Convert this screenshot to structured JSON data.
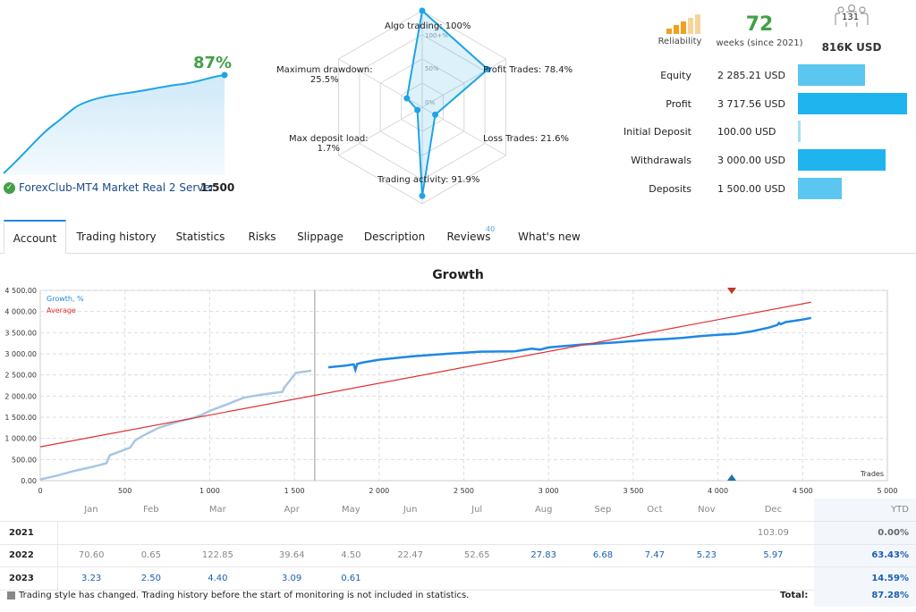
{
  "summary": {
    "growth_pct": "87%",
    "server_name": "ForexClub-MT4 Market Real 2 Server",
    "leverage": "1:500",
    "reliability_label": "Reliability",
    "weeks": "72",
    "weeks_label": "weeks (since 2021)",
    "subscribers": "131",
    "subscribers_amount": "816K USD"
  },
  "radar": {
    "labels": {
      "algo": "Algo trading: 100%",
      "profit": "Profit Trades: 78.4%",
      "loss": "Loss Trades: 21.6%",
      "activity": "Trading activity: 91.9%",
      "load_line1": "Max deposit load:",
      "load_line2": "1.7%",
      "drawdown_line1": "Maximum drawdown:",
      "drawdown_line2": "25.5%"
    },
    "scale_labels": [
      "100+%",
      "50%",
      "0%"
    ],
    "values": {
      "algo": 100,
      "profit": 78.4,
      "loss": 21.6,
      "activity": 91.9,
      "load": 1.7,
      "drawdown": 25.5
    }
  },
  "financials": [
    {
      "label": "Equity",
      "value": "2 285.21 USD",
      "amount": 2285.21,
      "color": "#5bc6f0"
    },
    {
      "label": "Profit",
      "value": "3 717.56 USD",
      "amount": 3717.56,
      "color": "#20b4ee"
    },
    {
      "label": "Initial Deposit",
      "value": "100.00 USD",
      "amount": 100,
      "color": "#a5dff6"
    },
    {
      "label": "Withdrawals",
      "value": "3 000.00 USD",
      "amount": 3000,
      "color": "#20b4ee"
    },
    {
      "label": "Deposits",
      "value": "1 500.00 USD",
      "amount": 1500,
      "color": "#5bc6f0"
    }
  ],
  "tabs": [
    {
      "label": "Account",
      "active": true
    },
    {
      "label": "Trading history"
    },
    {
      "label": "Statistics"
    },
    {
      "label": "Risks"
    },
    {
      "label": "Slippage"
    },
    {
      "label": "Description"
    },
    {
      "label": "Reviews",
      "badge": "40"
    },
    {
      "label": "What's new"
    }
  ],
  "chart_data": {
    "type": "line",
    "title": "Growth",
    "xlabel": "Trades",
    "ylabel": "",
    "xlim": [
      0,
      5000
    ],
    "ylim": [
      0,
      4500
    ],
    "x_ticks": [
      "0",
      "500",
      "1 000",
      "1 500",
      "2 000",
      "2 500",
      "3 000",
      "3 500",
      "4 000",
      "4 500",
      "5 000"
    ],
    "y_ticks": [
      "0.00",
      "500.00",
      "1 000.00",
      "1 500.00",
      "2 000.00",
      "2 500.00",
      "3 000.00",
      "3 500.00",
      "4 000.00",
      "4 500.00"
    ],
    "grid": true,
    "legend_position": "top-left",
    "monitoring_start_trade": 1620,
    "series": [
      {
        "name": "Growth, %",
        "color": "#1e88e5",
        "history_color": "#a8c6e4",
        "x": [
          0,
          100,
          200,
          300,
          390,
          410,
          530,
          560,
          600,
          700,
          800,
          900,
          950,
          1000,
          1100,
          1200,
          1300,
          1430,
          1440,
          1480,
          1510,
          1600,
          1700,
          1800,
          1850,
          1860,
          1870,
          1900,
          2000,
          2200,
          2400,
          2600,
          2800,
          2900,
          2950,
          3000,
          3200,
          3400,
          3500,
          3600,
          3700,
          3800,
          3900,
          4000,
          4100,
          4200,
          4300,
          4350,
          4360,
          4370,
          4400,
          4500,
          4550
        ],
        "y": [
          30,
          120,
          230,
          320,
          410,
          600,
          780,
          950,
          1050,
          1250,
          1380,
          1480,
          1550,
          1650,
          1800,
          1960,
          2030,
          2100,
          2200,
          2400,
          2550,
          2600,
          2680,
          2720,
          2750,
          2620,
          2760,
          2790,
          2860,
          2940,
          3000,
          3050,
          3060,
          3120,
          3100,
          3150,
          3220,
          3270,
          3300,
          3330,
          3350,
          3380,
          3420,
          3450,
          3470,
          3530,
          3620,
          3680,
          3730,
          3700,
          3750,
          3810,
          3850
        ]
      },
      {
        "name": "Average",
        "color": "#e03030",
        "x": [
          0,
          4550
        ],
        "y": [
          800,
          4220
        ]
      }
    ]
  },
  "monthly": {
    "headers": [
      "",
      "Jan",
      "Feb",
      "Mar",
      "Apr",
      "May",
      "Jun",
      "Jul",
      "Aug",
      "Sep",
      "Oct",
      "Nov",
      "Dec",
      "YTD"
    ],
    "rows": [
      {
        "year": "2021",
        "cells": [
          "",
          "",
          "",
          "",
          "",
          "",
          "",
          "",
          "",
          "",
          "",
          "103.09"
        ],
        "styles": [
          "",
          "",
          "",
          "",
          "",
          "",
          "",
          "",
          "",
          "",
          "",
          "gray"
        ],
        "ytd": "0.00%",
        "ytd_style": "dim"
      },
      {
        "year": "2022",
        "cells": [
          "70.60",
          "0.65",
          "122.85",
          "39.64",
          "4.50",
          "22.47",
          "52.65",
          "27.83",
          "6.68",
          "7.47",
          "5.23",
          "5.97"
        ],
        "styles": [
          "gray",
          "gray",
          "gray",
          "gray",
          "gray",
          "gray",
          "gray",
          "blue",
          "blue",
          "blue",
          "blue",
          "blue"
        ],
        "ytd": "63.43%",
        "ytd_style": "blue"
      },
      {
        "year": "2023",
        "cells": [
          "3.23",
          "2.50",
          "4.40",
          "3.09",
          "0.61",
          "",
          "",
          "",
          "",
          "",
          "",
          ""
        ],
        "styles": [
          "blue",
          "blue",
          "blue",
          "blue",
          "blue",
          "",
          "",
          "",
          "",
          "",
          "",
          ""
        ],
        "ytd": "14.59%",
        "ytd_style": "blue"
      }
    ]
  },
  "footer": {
    "note": "Trading style has changed. Trading history before the start of monitoring is not included in statistics.",
    "total_label": "Total:",
    "total_value": "87.28%"
  }
}
